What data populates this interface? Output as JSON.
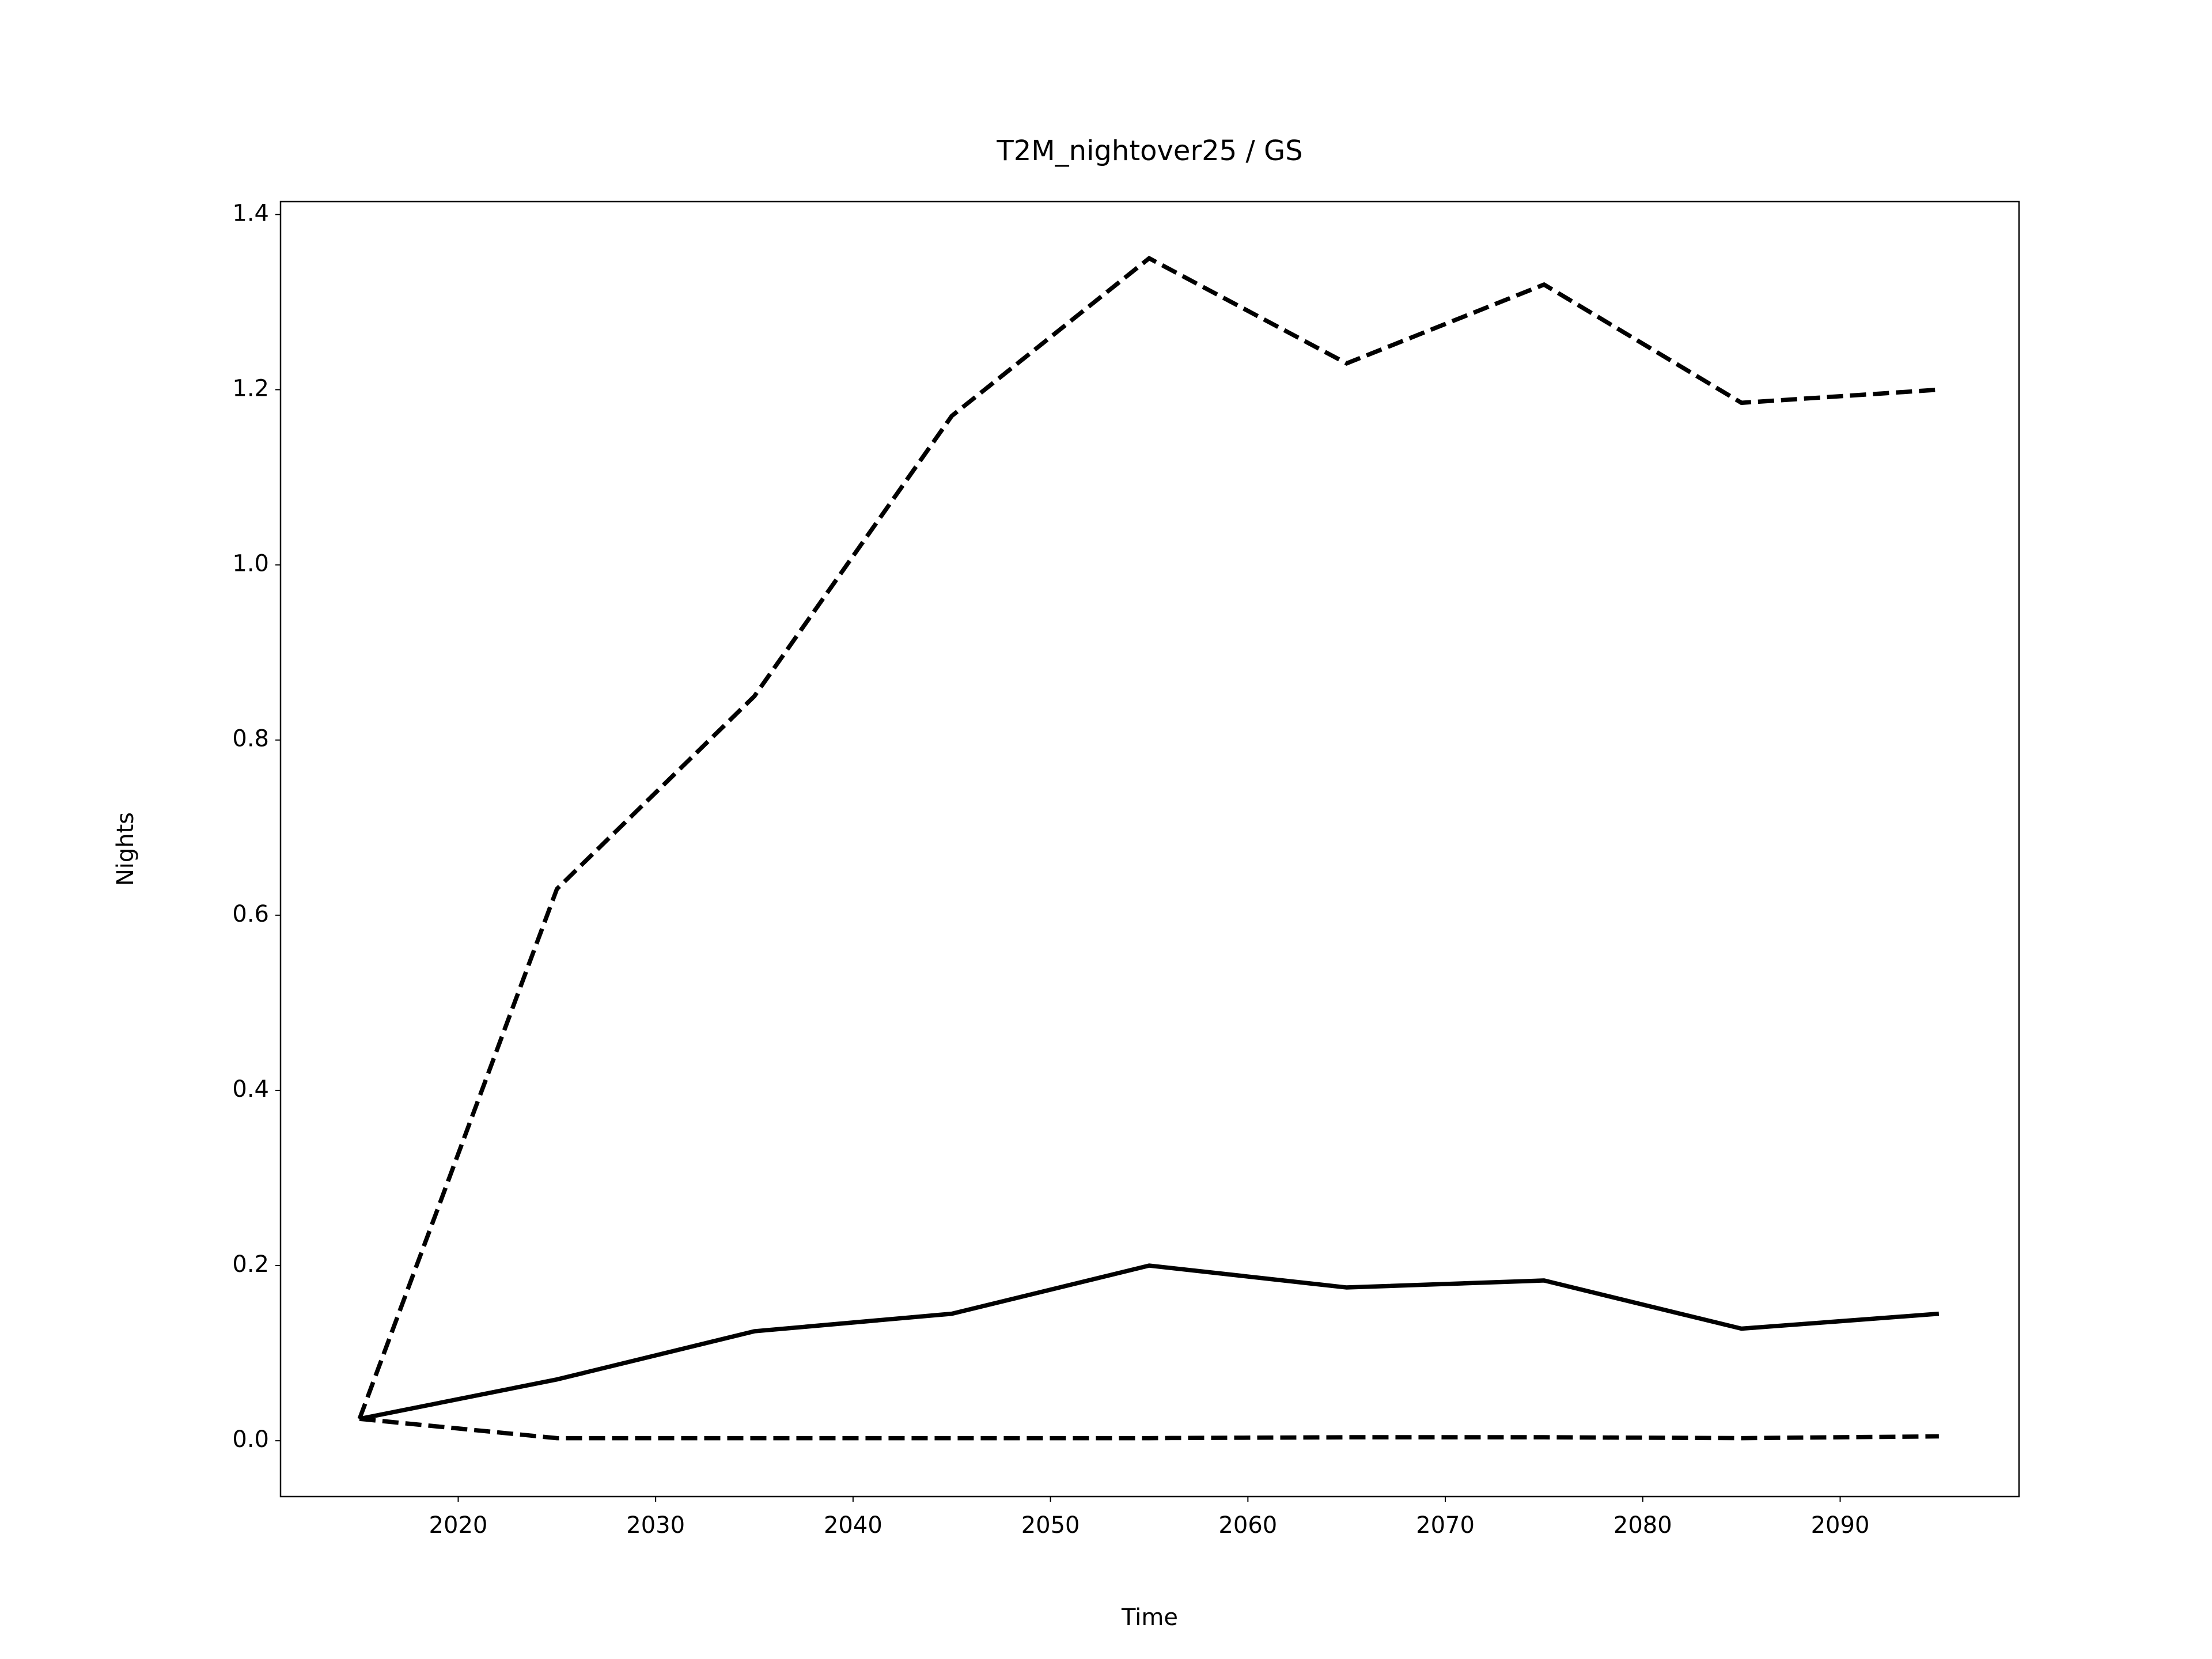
{
  "chart_data": {
    "type": "line",
    "title": "T2M_nightover25 / GS",
    "x_label": "Time",
    "y_label": "Nights",
    "x": [
      2015,
      2025,
      2035,
      2045,
      2055,
      2065,
      2075,
      2085,
      2095
    ],
    "series": [
      {
        "color": "#000000",
        "linestyle": "solid",
        "values": [
          0.025,
          0.07,
          0.125,
          0.145,
          0.2,
          0.175,
          0.183,
          0.128,
          0.145
        ]
      },
      {
        "color": "#000000",
        "linestyle": "dashed",
        "values": [
          0.025,
          0.63,
          0.85,
          1.17,
          1.35,
          1.23,
          1.32,
          1.185,
          1.2
        ]
      },
      {
        "color": "#000000",
        "linestyle": "dashed",
        "values": [
          0.025,
          0.003,
          0.003,
          0.003,
          0.003,
          0.004,
          0.004,
          0.003,
          0.005
        ]
      }
    ],
    "xlim": [
      2011,
      2099.06
    ],
    "ylim": [
      -0.0637,
      1.4147
    ],
    "xticks": [
      2020,
      2030,
      2040,
      2050,
      2060,
      2070,
      2080,
      2090
    ],
    "yticks": [
      {
        "value": 0,
        "label": "0.0"
      },
      0.2,
      0.4,
      0.6,
      0.8,
      {
        "value": 1,
        "label": "1.0"
      },
      1.2,
      1.4
    ],
    "grid": false
  }
}
